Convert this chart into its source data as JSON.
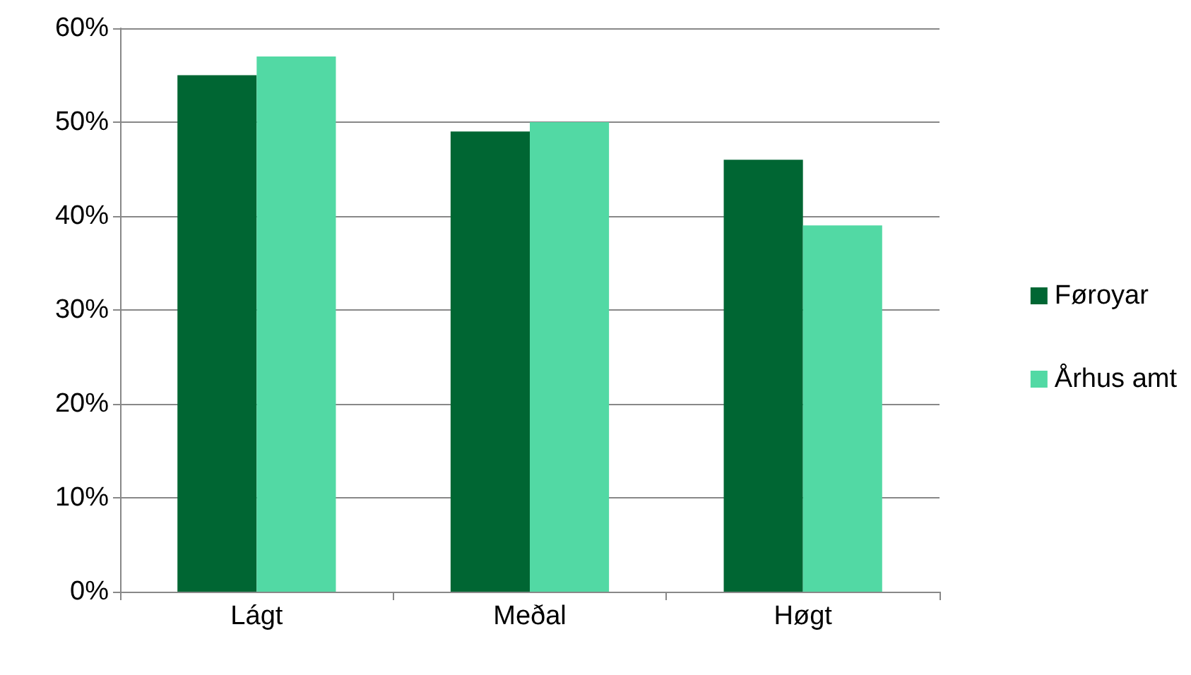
{
  "chart_data": {
    "type": "bar",
    "categories": [
      "Lágt",
      "Meðal",
      "Høgt"
    ],
    "series": [
      {
        "name": "Føroyar",
        "color": "#006633",
        "values": [
          55,
          49,
          46
        ]
      },
      {
        "name": "Århus amt",
        "color": "#52d9a4",
        "values": [
          57,
          50,
          39
        ]
      }
    ],
    "ylim": [
      0,
      60
    ],
    "yticks": [
      {
        "value": 0,
        "label": "0%"
      },
      {
        "value": 10,
        "label": "10%"
      },
      {
        "value": 20,
        "label": "20%"
      },
      {
        "value": 30,
        "label": "30%"
      },
      {
        "value": 40,
        "label": "40%"
      },
      {
        "value": 50,
        "label": "50%"
      },
      {
        "value": 60,
        "label": "60%"
      }
    ],
    "grid": "y",
    "legend": "right"
  }
}
